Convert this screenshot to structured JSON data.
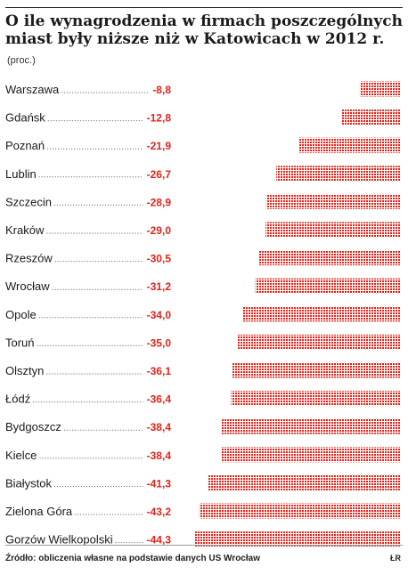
{
  "chart_data": {
    "type": "bar",
    "title_lines": [
      "O ile wynagrodzenia w firmach poszczególnych",
      "miast były niższe niż w Katowicach w 2012 r."
    ],
    "unit": "(proc.)",
    "categories": [
      "Warszawa",
      "Gdańsk",
      "Poznań",
      "Lublin",
      "Szczecin",
      "Kraków",
      "Rzeszów",
      "Wrocław",
      "Opole",
      "Toruń",
      "Olsztyn",
      "Łódź",
      "Bydgoszcz",
      "Kielce",
      "Białystok",
      "Zielona Góra",
      "Gorzów Wielkopolski"
    ],
    "values": [
      -8.8,
      -12.8,
      -21.9,
      -26.7,
      -28.9,
      -29.0,
      -30.5,
      -31.2,
      -34.0,
      -35.0,
      -36.1,
      -36.4,
      -38.4,
      -38.4,
      -41.3,
      -43.2,
      -44.3
    ],
    "value_labels": [
      "-8,8",
      "-12,8",
      "-21,9",
      "-26,7",
      "-28,9",
      "-29,0",
      "-30,5",
      "-31,2",
      "-34,0",
      "-35,0",
      "-36,1",
      "-36,4",
      "-38,4",
      "-38,4",
      "-41,3",
      "-43,2",
      "-44,3"
    ],
    "bar_color": "#e2231a",
    "value_label_color": "#e2231a"
  },
  "footer": {
    "source": "Źródło: obliczenia własne na podstawie danych US Wrocław",
    "credit": "ŁR"
  }
}
